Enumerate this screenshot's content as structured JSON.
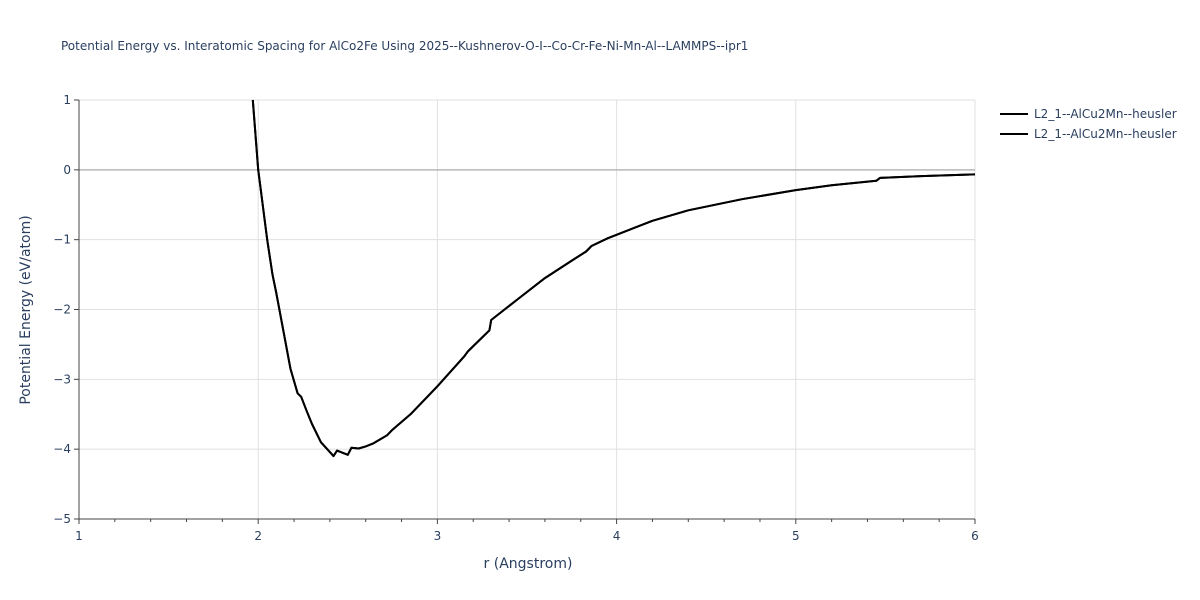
{
  "chart_data": {
    "type": "line",
    "title": "Potential Energy vs. Interatomic Spacing for AlCo2Fe Using 2025--Kushnerov-O-I--Co-Cr-Fe-Ni-Mn-Al--LAMMPS--ipr1",
    "xlabel": "r (Angstrom)",
    "ylabel": "Potential Energy (eV/atom)",
    "xlim": [
      1,
      6
    ],
    "ylim": [
      -5,
      1
    ],
    "xticks": [
      1,
      2,
      3,
      4,
      5,
      6
    ],
    "xtick_labels": [
      "1",
      "2",
      "3",
      "4",
      "5",
      "6"
    ],
    "yticks": [
      1,
      0,
      -1,
      -2,
      -3,
      -4,
      -5
    ],
    "ytick_labels": [
      "1",
      "0",
      "−1",
      "−2",
      "−3",
      "−4",
      "−5"
    ],
    "grid": true,
    "legend_position": "top-right",
    "series": [
      {
        "name": "L2_1--AlCu2Mn--heusler",
        "color": "#000000",
        "x": [
          1.97,
          2.0,
          2.05,
          2.08,
          2.1,
          2.14,
          2.18,
          2.22,
          2.24,
          2.27,
          2.3,
          2.35,
          2.42,
          2.44,
          2.5,
          2.52,
          2.56,
          2.6,
          2.64,
          2.68,
          2.72,
          2.75,
          2.85,
          3.0,
          3.15,
          3.17,
          3.29,
          3.3,
          3.35,
          3.45,
          3.6,
          3.75,
          3.83,
          3.86,
          3.95,
          4.2,
          4.4,
          4.7,
          5.0,
          5.2,
          5.45,
          5.47,
          5.7,
          6.0
        ],
        "y": [
          1.0,
          0.0,
          -1.0,
          -1.5,
          -1.75,
          -2.3,
          -2.85,
          -3.2,
          -3.25,
          -3.45,
          -3.64,
          -3.9,
          -4.1,
          -4.02,
          -4.08,
          -3.98,
          -3.99,
          -3.96,
          -3.92,
          -3.86,
          -3.8,
          -3.72,
          -3.5,
          -3.1,
          -2.67,
          -2.6,
          -2.3,
          -2.15,
          -2.05,
          -1.85,
          -1.55,
          -1.3,
          -1.17,
          -1.09,
          -0.98,
          -0.73,
          -0.58,
          -0.42,
          -0.29,
          -0.22,
          -0.155,
          -0.115,
          -0.09,
          -0.065
        ]
      },
      {
        "name": "L2_1--AlCu2Mn--heusler",
        "color": "#000000",
        "x": [
          1.97,
          2.0,
          2.05,
          2.08,
          2.1,
          2.14,
          2.18,
          2.22,
          2.24,
          2.27,
          2.3,
          2.35,
          2.42,
          2.44,
          2.5,
          2.52,
          2.56,
          2.6,
          2.64,
          2.68,
          2.72,
          2.75,
          2.85,
          3.0,
          3.15,
          3.17,
          3.29,
          3.3,
          3.35,
          3.45,
          3.6,
          3.75,
          3.83,
          3.86,
          3.95,
          4.2,
          4.4,
          4.7,
          5.0,
          5.2,
          5.45,
          5.47,
          5.7,
          6.0
        ],
        "y": [
          1.0,
          0.0,
          -1.0,
          -1.5,
          -1.75,
          -2.3,
          -2.85,
          -3.2,
          -3.25,
          -3.45,
          -3.64,
          -3.9,
          -4.1,
          -4.02,
          -4.08,
          -3.98,
          -3.99,
          -3.96,
          -3.92,
          -3.86,
          -3.8,
          -3.72,
          -3.5,
          -3.1,
          -2.67,
          -2.6,
          -2.3,
          -2.15,
          -2.05,
          -1.85,
          -1.55,
          -1.3,
          -1.17,
          -1.09,
          -0.98,
          -0.73,
          -0.58,
          -0.42,
          -0.29,
          -0.22,
          -0.155,
          -0.115,
          -0.09,
          -0.065
        ]
      }
    ]
  }
}
